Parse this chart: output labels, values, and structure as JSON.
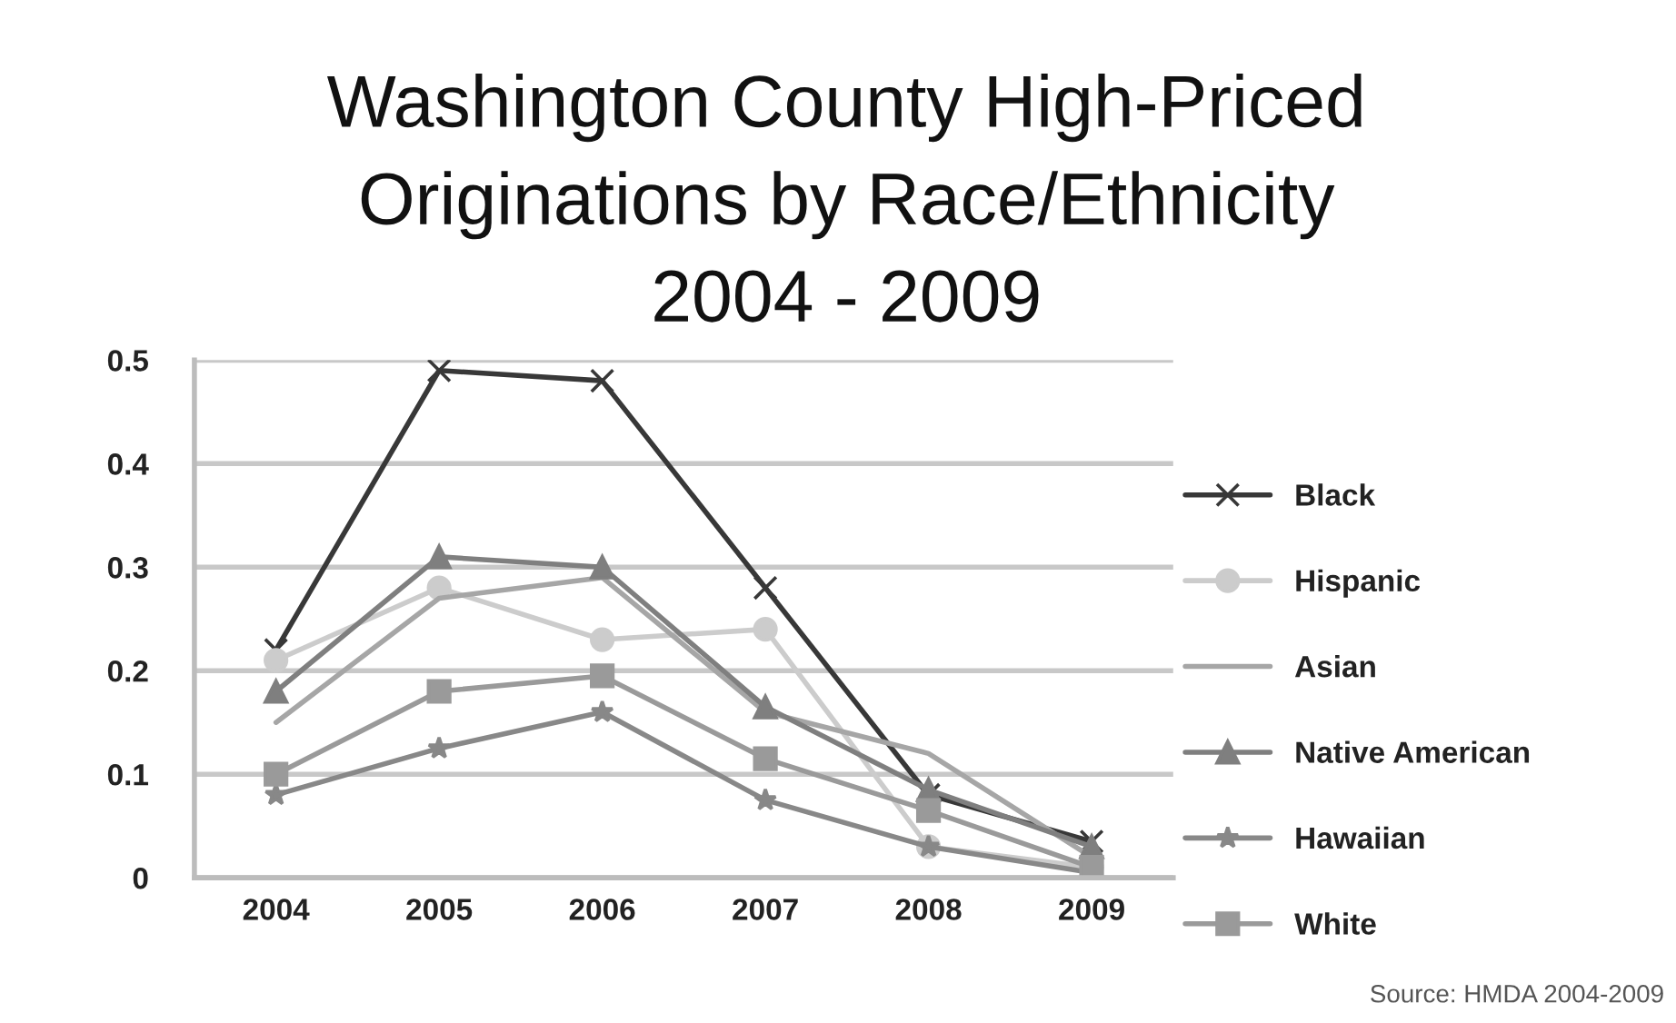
{
  "chart_data": {
    "type": "line",
    "title": "Washington County High-Priced\nOriginations by Race/Ethnicity\n2004 - 2009",
    "categories": [
      "2004",
      "2005",
      "2006",
      "2007",
      "2008",
      "2009"
    ],
    "ylim": [
      0,
      0.5
    ],
    "yticks": [
      0,
      0.1,
      0.2,
      0.3,
      0.4,
      0.5
    ],
    "grid": "y",
    "legend": "right",
    "line_style": "solid",
    "annotations": [
      "Source: HMDA 2004-2009"
    ],
    "series": [
      {
        "name": "Black",
        "color": "#383838",
        "marker": "cross",
        "values": [
          0.22,
          0.49,
          0.48,
          0.28,
          0.08,
          0.035
        ]
      },
      {
        "name": "Hispanic",
        "color": "#cccccc",
        "marker": "circle",
        "values": [
          0.21,
          0.28,
          0.23,
          0.24,
          0.03,
          0.01
        ]
      },
      {
        "name": "Asian",
        "color": "#a6a6a6",
        "marker": "none",
        "values": [
          0.15,
          0.27,
          0.29,
          0.16,
          0.12,
          0.02
        ]
      },
      {
        "name": "Native American",
        "color": "#7f7f7f",
        "marker": "triangle",
        "values": [
          0.18,
          0.31,
          0.3,
          0.165,
          0.085,
          0.03
        ]
      },
      {
        "name": "Hawaiian",
        "color": "#888888",
        "marker": "star",
        "values": [
          0.08,
          0.125,
          0.16,
          0.075,
          0.03,
          0.005
        ]
      },
      {
        "name": "White",
        "color": "#9a9a9a",
        "marker": "square",
        "values": [
          0.1,
          0.18,
          0.195,
          0.115,
          0.065,
          0.01
        ]
      }
    ]
  }
}
